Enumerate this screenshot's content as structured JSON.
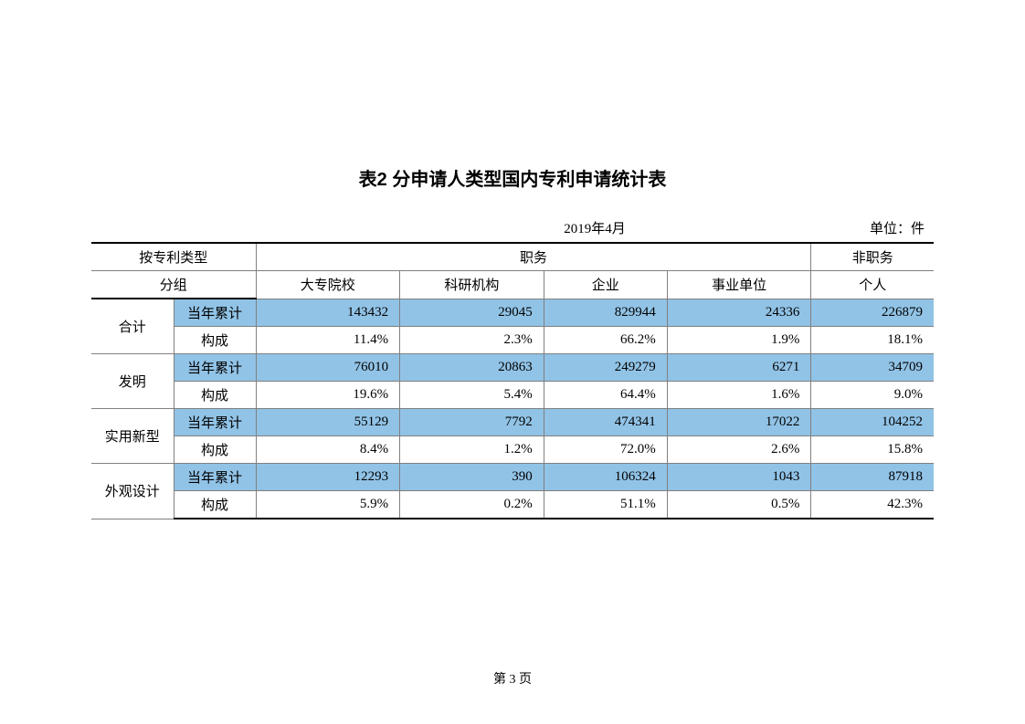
{
  "title": "表2 分申请人类型国内专利申请统计表",
  "date": "2019年4月",
  "unit": "单位：件",
  "headers": {
    "group_label_top": "按专利类型",
    "group_label_bottom": "分组",
    "col_group_1": "职务",
    "col_group_2": "非职务",
    "sub1": "大专院校",
    "sub2": "科研机构",
    "sub3": "企业",
    "sub4": "事业单位",
    "sub5": "个人"
  },
  "row_labels": {
    "r1": "合计",
    "r2": "发明",
    "r3": "实用新型",
    "r4": "外观设计",
    "metric1": "当年累计",
    "metric2": "构成"
  },
  "data": {
    "r1m1": {
      "c1": "143432",
      "c2": "29045",
      "c3": "829944",
      "c4": "24336",
      "c5": "226879"
    },
    "r1m2": {
      "c1": "11.4%",
      "c2": "2.3%",
      "c3": "66.2%",
      "c4": "1.9%",
      "c5": "18.1%"
    },
    "r2m1": {
      "c1": "76010",
      "c2": "20863",
      "c3": "249279",
      "c4": "6271",
      "c5": "34709"
    },
    "r2m2": {
      "c1": "19.6%",
      "c2": "5.4%",
      "c3": "64.4%",
      "c4": "1.6%",
      "c5": "9.0%"
    },
    "r3m1": {
      "c1": "55129",
      "c2": "7792",
      "c3": "474341",
      "c4": "17022",
      "c5": "104252"
    },
    "r3m2": {
      "c1": "8.4%",
      "c2": "1.2%",
      "c3": "72.0%",
      "c4": "2.6%",
      "c5": "15.8%"
    },
    "r4m1": {
      "c1": "12293",
      "c2": "390",
      "c3": "106324",
      "c4": "1043",
      "c5": "87918"
    },
    "r4m2": {
      "c1": "5.9%",
      "c2": "0.2%",
      "c3": "51.1%",
      "c4": "0.5%",
      "c5": "42.3%"
    }
  },
  "footer": "第 3 页",
  "style": {
    "highlight_color": "#91c3e6",
    "border_color": "#808080",
    "heavy_border_color": "#000000",
    "background": "#ffffff",
    "title_fontsize": 20,
    "body_fontsize": 15
  }
}
